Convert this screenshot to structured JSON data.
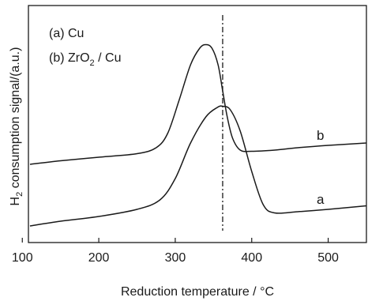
{
  "chart_data": {
    "type": "line",
    "title": "",
    "xlabel": "Reduction  temperature / °C",
    "ylabel": {
      "prefix": "H",
      "subscript": "2",
      "suffix": " consumption signal/(a.u.)"
    },
    "xlim": [
      108,
      550
    ],
    "ylim": [
      0,
      1
    ],
    "xticks": [
      100,
      200,
      300,
      400,
      500
    ],
    "y_tick_labels": false,
    "grid": false,
    "legend": {
      "placement": "top-left",
      "entries": [
        {
          "text": "(a) Cu"
        },
        {
          "text": "(b) ZrO",
          "subscript": "2",
          "suffix": " / Cu"
        }
      ]
    },
    "reference_line": {
      "x": 362,
      "style": "dash-dot"
    },
    "series": [
      {
        "label": "a",
        "x": [
          110,
          150,
          200,
          250,
          280,
          300,
          320,
          340,
          355,
          362,
          372,
          385,
          400,
          415,
          430,
          460,
          500,
          550
        ],
        "y": [
          0.07,
          0.09,
          0.11,
          0.14,
          0.18,
          0.27,
          0.42,
          0.53,
          0.57,
          0.575,
          0.56,
          0.47,
          0.3,
          0.16,
          0.125,
          0.13,
          0.14,
          0.155
        ]
      },
      {
        "label": "b",
        "x": [
          110,
          150,
          200,
          250,
          275,
          290,
          305,
          320,
          332,
          340,
          348,
          356,
          362,
          368,
          375,
          385,
          400,
          430,
          460,
          500,
          550
        ],
        "y": [
          0.33,
          0.345,
          0.36,
          0.375,
          0.4,
          0.46,
          0.6,
          0.75,
          0.82,
          0.835,
          0.82,
          0.75,
          0.64,
          0.53,
          0.44,
          0.39,
          0.385,
          0.39,
          0.4,
          0.41,
          0.42
        ]
      }
    ]
  }
}
